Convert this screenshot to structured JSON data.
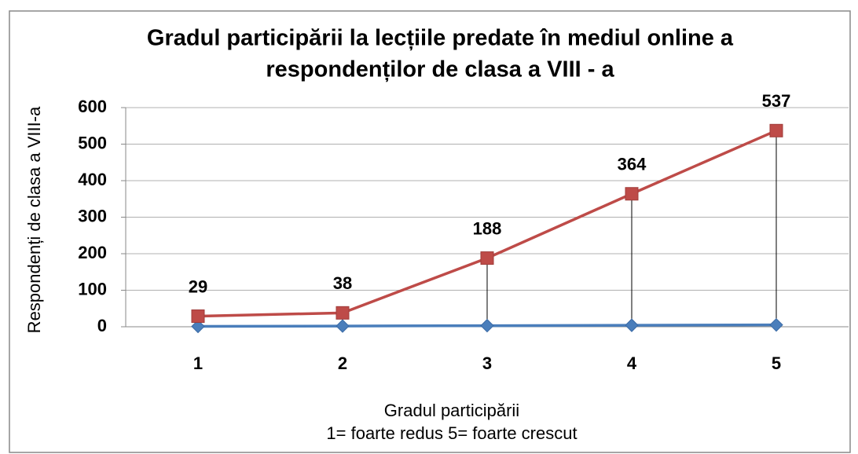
{
  "chart_data": {
    "type": "line",
    "title": [
      "Gradul participării la lecțiile predate în mediul online a",
      "respondenților de clasa a VIII - a"
    ],
    "x_label": [
      "Gradul participării",
      "1=  foarte redus  5= foarte crescut"
    ],
    "y_label": "Respondenți de clasa a VIII-a",
    "categories": [
      "1",
      "2",
      "3",
      "4",
      "5"
    ],
    "series": [
      {
        "color": "#4a7ebb",
        "marker": "diamond",
        "values": [
          1,
          2,
          3,
          4,
          5
        ]
      },
      {
        "color": "#be4b48",
        "marker": "square",
        "values": [
          29,
          38,
          188,
          364,
          537
        ],
        "data_labels": true
      }
    ],
    "drop_lines": true,
    "ylim": [
      0,
      600
    ],
    "yticks": [
      0,
      100,
      200,
      300,
      400,
      500,
      600
    ],
    "grid": true
  }
}
